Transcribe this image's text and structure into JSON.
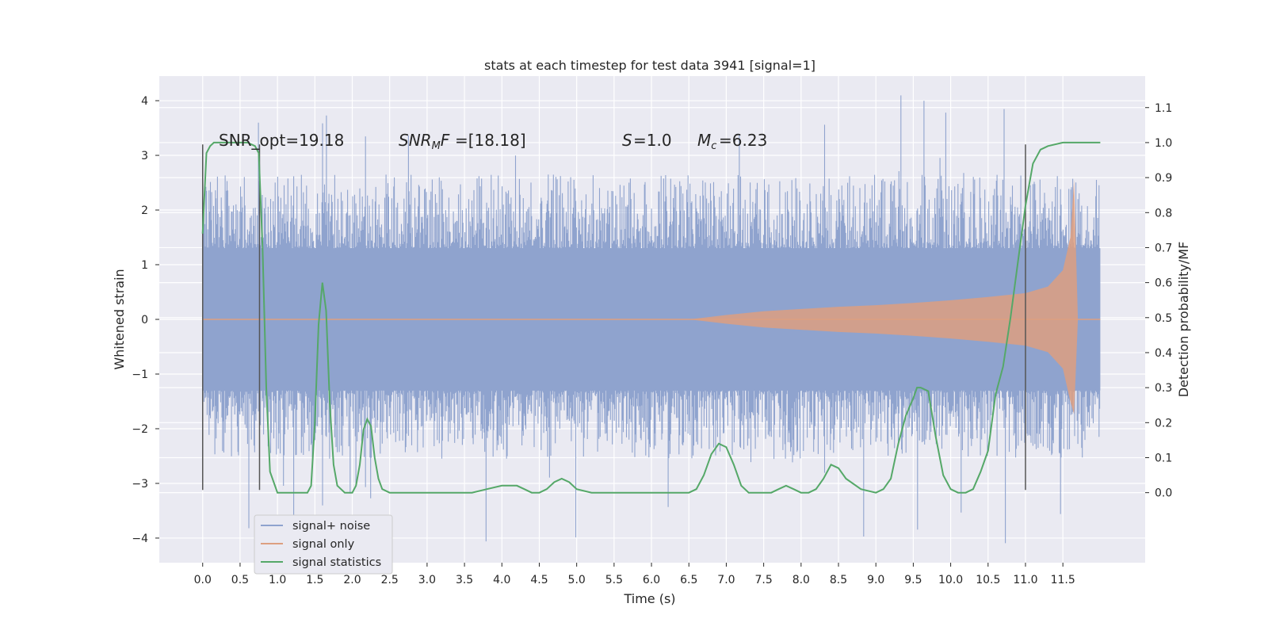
{
  "chart_data": {
    "type": "line",
    "title": "stats at each timestep for test data 3941 [signal=1]",
    "xlabel": "Time (s)",
    "ylabel_left": "Whitened strain",
    "ylabel_right": "Detection probability/MF",
    "xlim": [
      -0.58,
      12.6
    ],
    "ylim_left": [
      -4.45,
      4.45
    ],
    "ylim_right": [
      -0.2,
      1.19
    ],
    "grid": true,
    "legend_position": "bottom-left",
    "xticks": [
      "0.0",
      "0.5",
      "1.0",
      "1.5",
      "2.0",
      "2.5",
      "3.0",
      "3.5",
      "4.0",
      "4.5",
      "5.0",
      "5.5",
      "6.0",
      "6.5",
      "7.0",
      "7.5",
      "8.0",
      "8.5",
      "9.0",
      "9.5",
      "10.0",
      "10.5",
      "11.0",
      "11.5"
    ],
    "yticks_left": [
      "4",
      "3",
      "2",
      "1",
      "0",
      "−1",
      "−2",
      "−3",
      "−4"
    ],
    "yticks_right": [
      "1.1",
      "1.0",
      "0.9",
      "0.8",
      "0.7",
      "0.6",
      "0.5",
      "0.4",
      "0.3",
      "0.2",
      "0.1",
      "0.0"
    ],
    "annotations": {
      "snr_opt": "SNR_opt=19.18",
      "snr_mf": "=[18.18]",
      "s_value": "=1.0",
      "mc_value": "=6.23"
    },
    "vertical_markers": [
      0.0,
      0.76,
      11.0
    ],
    "series": [
      {
        "name": "signal+ noise",
        "color": "#8fa3ce",
        "duration": 12.0,
        "band": 1.3,
        "spike_max": 4.1
      },
      {
        "name": "signal only",
        "color": "#dd9f80",
        "envelope": {
          "t": [
            6.5,
            7.0,
            7.5,
            8.0,
            8.5,
            9.0,
            9.5,
            10.0,
            10.5,
            11.0,
            11.3,
            11.5,
            11.6,
            11.65,
            11.7
          ],
          "amp": [
            0.0,
            0.08,
            0.15,
            0.19,
            0.23,
            0.26,
            0.3,
            0.35,
            0.41,
            0.48,
            0.6,
            0.9,
            1.5,
            2.55,
            0.0
          ]
        }
      },
      {
        "name": "signal statistics",
        "color": "#55a868",
        "x": [
          0.0,
          0.05,
          0.1,
          0.15,
          0.2,
          0.3,
          0.4,
          0.5,
          0.6,
          0.7,
          0.75,
          0.8,
          0.85,
          0.9,
          1.0,
          1.1,
          1.2,
          1.3,
          1.4,
          1.45,
          1.5,
          1.55,
          1.6,
          1.65,
          1.7,
          1.75,
          1.8,
          1.9,
          2.0,
          2.05,
          2.1,
          2.15,
          2.2,
          2.25,
          2.3,
          2.35,
          2.4,
          2.5,
          2.6,
          2.8,
          3.0,
          3.2,
          3.4,
          3.6,
          3.8,
          4.0,
          4.1,
          4.2,
          4.3,
          4.4,
          4.5,
          4.6,
          4.7,
          4.8,
          4.9,
          5.0,
          5.2,
          5.5,
          6.0,
          6.3,
          6.5,
          6.6,
          6.7,
          6.8,
          6.9,
          7.0,
          7.1,
          7.2,
          7.3,
          7.4,
          7.5,
          7.6,
          7.7,
          7.8,
          7.9,
          8.0,
          8.1,
          8.2,
          8.3,
          8.4,
          8.5,
          8.6,
          8.8,
          9.0,
          9.1,
          9.2,
          9.3,
          9.4,
          9.5,
          9.55,
          9.6,
          9.7,
          9.8,
          9.9,
          10.0,
          10.1,
          10.2,
          10.3,
          10.4,
          10.5,
          10.6,
          10.7,
          10.8,
          10.9,
          11.0,
          11.1,
          11.2,
          11.3,
          11.5,
          11.7,
          11.9,
          12.0
        ],
        "y": [
          0.74,
          0.97,
          0.99,
          1.0,
          1.0,
          1.0,
          1.0,
          1.0,
          1.0,
          0.99,
          0.97,
          0.7,
          0.3,
          0.06,
          0.0,
          0.0,
          0.0,
          0.0,
          0.0,
          0.02,
          0.2,
          0.48,
          0.6,
          0.52,
          0.25,
          0.08,
          0.02,
          0.0,
          0.0,
          0.02,
          0.08,
          0.18,
          0.21,
          0.19,
          0.1,
          0.04,
          0.01,
          0.0,
          0.0,
          0.0,
          0.0,
          0.0,
          0.0,
          0.0,
          0.01,
          0.02,
          0.02,
          0.02,
          0.01,
          0.0,
          0.0,
          0.01,
          0.03,
          0.04,
          0.03,
          0.01,
          0.0,
          0.0,
          0.0,
          0.0,
          0.0,
          0.01,
          0.05,
          0.11,
          0.14,
          0.13,
          0.08,
          0.02,
          0.0,
          0.0,
          0.0,
          0.0,
          0.01,
          0.02,
          0.01,
          0.0,
          0.0,
          0.01,
          0.04,
          0.08,
          0.07,
          0.04,
          0.01,
          0.0,
          0.01,
          0.04,
          0.14,
          0.22,
          0.27,
          0.3,
          0.3,
          0.29,
          0.16,
          0.05,
          0.01,
          0.0,
          0.0,
          0.01,
          0.06,
          0.12,
          0.28,
          0.36,
          0.5,
          0.66,
          0.82,
          0.94,
          0.98,
          0.99,
          1.0,
          1.0,
          1.0,
          1.0
        ]
      }
    ]
  }
}
